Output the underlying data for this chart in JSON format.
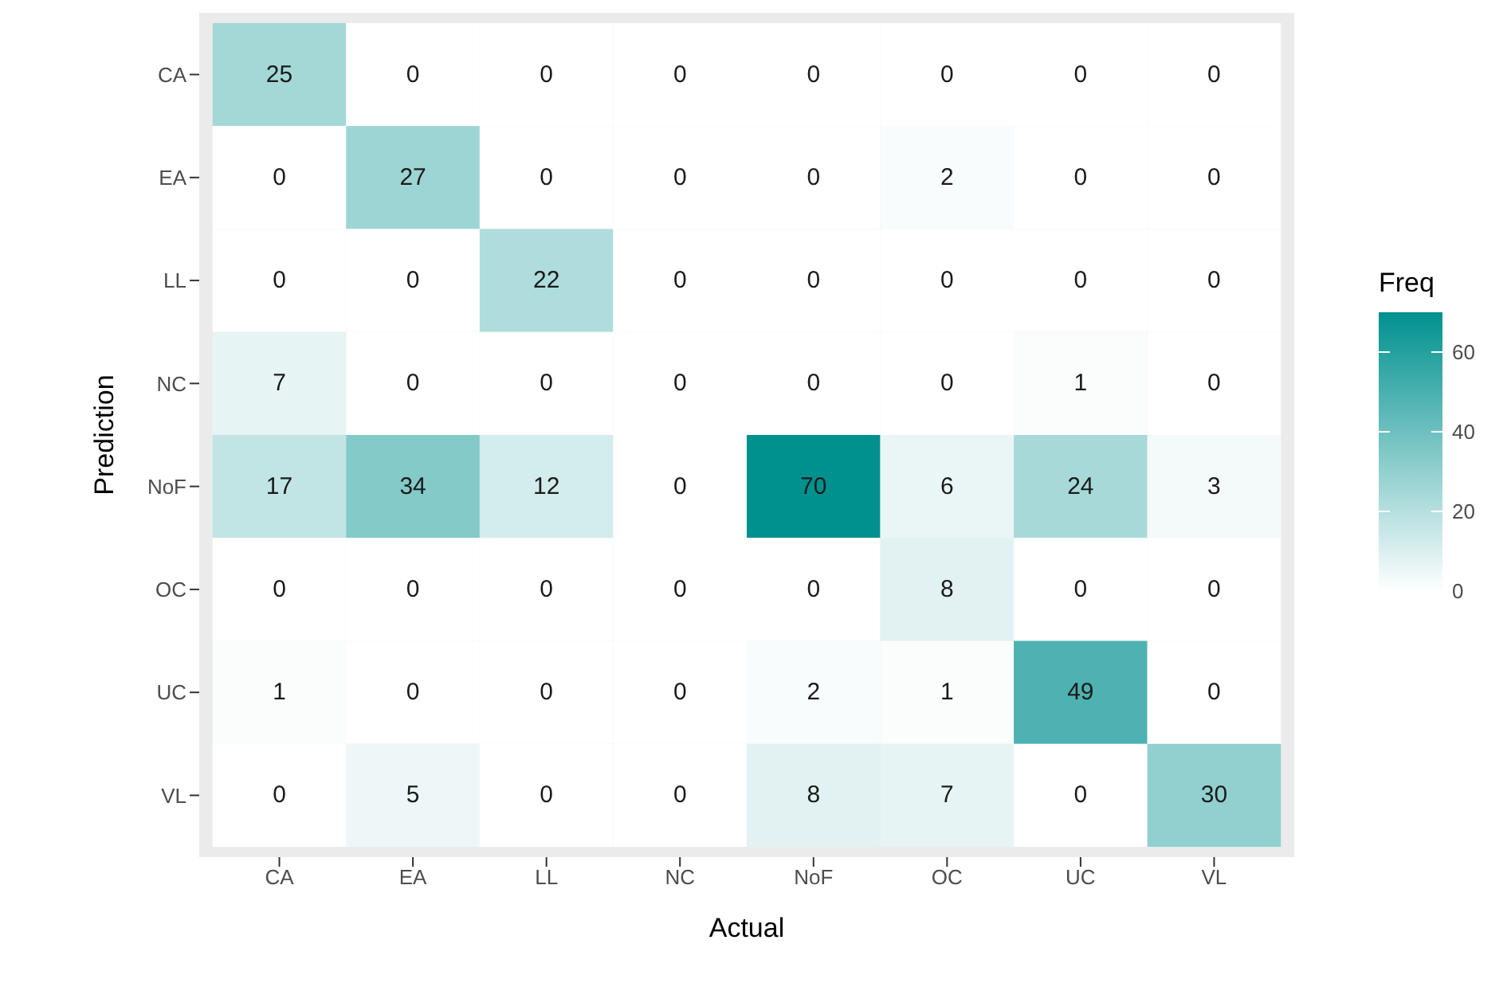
{
  "chart_data": {
    "type": "heatmap",
    "xlabel": "Actual",
    "ylabel": "Prediction",
    "clabel": "Freq",
    "categories": [
      "CA",
      "EA",
      "LL",
      "NC",
      "NoF",
      "OC",
      "UC",
      "VL"
    ],
    "y_categories": [
      "CA",
      "EA",
      "LL",
      "NC",
      "NoF",
      "OC",
      "UC",
      "VL"
    ],
    "cells": [
      [
        25,
        0,
        0,
        0,
        0,
        0,
        0,
        0
      ],
      [
        0,
        27,
        0,
        0,
        0,
        2,
        0,
        0
      ],
      [
        0,
        0,
        22,
        0,
        0,
        0,
        0,
        0
      ],
      [
        7,
        0,
        0,
        0,
        0,
        0,
        1,
        0
      ],
      [
        17,
        34,
        12,
        0,
        70,
        6,
        24,
        3
      ],
      [
        0,
        0,
        0,
        0,
        0,
        8,
        0,
        0
      ],
      [
        1,
        0,
        0,
        0,
        2,
        1,
        49,
        0
      ],
      [
        0,
        5,
        0,
        0,
        8,
        7,
        0,
        30
      ]
    ],
    "clim": [
      0,
      70
    ],
    "cticks": [
      0,
      20,
      40,
      60
    ],
    "data_labels": true
  }
}
